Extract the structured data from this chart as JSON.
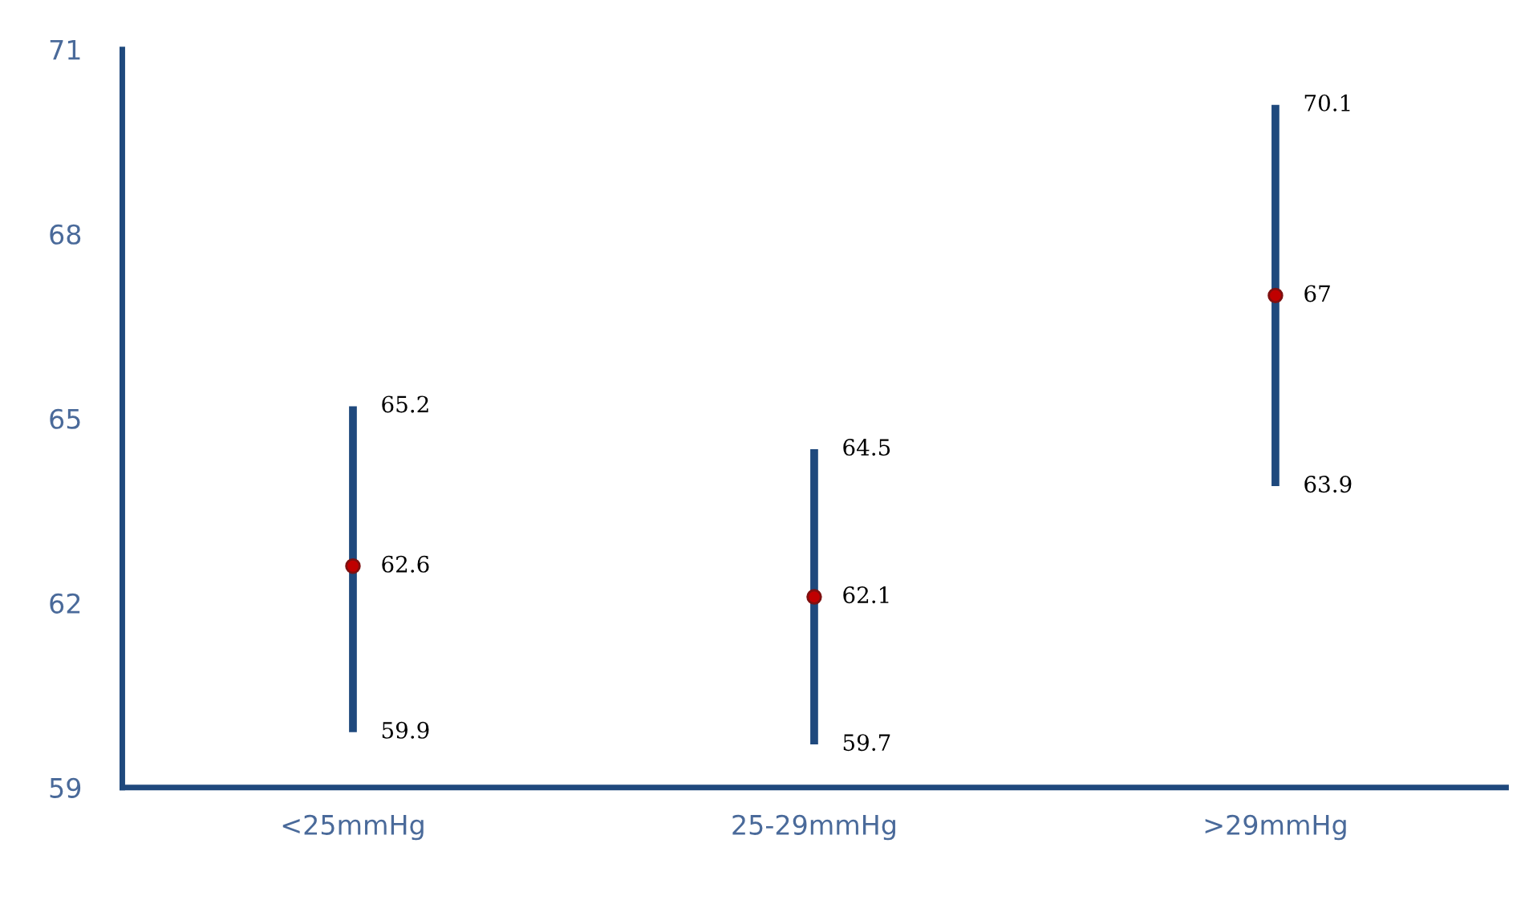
{
  "chart_data": {
    "type": "scatter",
    "categories": [
      "<25mmHg",
      "25-29mmHg",
      ">29mmHg"
    ],
    "series": [
      {
        "color": "#c00000",
        "values": [
          62.6,
          62.1,
          67
        ],
        "errors": [
          [
            59.9,
            65.2
          ],
          [
            59.7,
            64.5
          ],
          [
            63.9,
            70.1
          ]
        ]
      }
    ],
    "annotations": [
      {
        "text": "65.2",
        "x": "<25mmHg",
        "y": 65.2
      },
      {
        "text": "59.9",
        "x": "<25mmHg",
        "y": 59.9
      },
      {
        "text": "64.5",
        "x": "25-29mmHg",
        "y": 64.5
      },
      {
        "text": "59.7",
        "x": "25-29mmHg",
        "y": 59.7
      },
      {
        "text": "70.1",
        "x": ">29mmHg",
        "y": 70.1
      },
      {
        "text": "63.9",
        "x": ">29mmHg",
        "y": 63.9
      }
    ],
    "ylim": [
      59,
      71
    ],
    "yticks": [
      59,
      62,
      65,
      68,
      71
    ],
    "data_labels": true,
    "marker": "circle",
    "grid": false,
    "legend": false
  }
}
